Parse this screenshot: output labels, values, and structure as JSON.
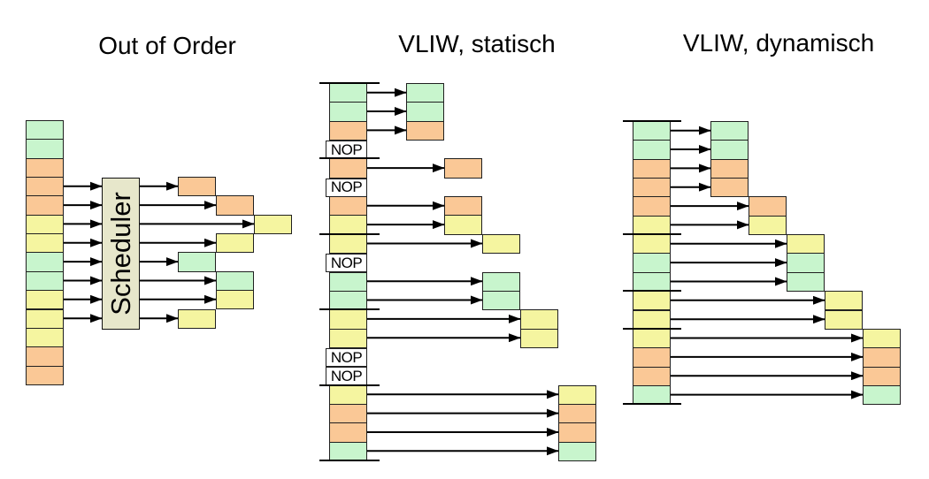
{
  "titles": [
    {
      "text": "Out of Order"
    },
    {
      "text": "VLIW, statisch"
    },
    {
      "text": "VLIW, dynamisch"
    }
  ],
  "scheduler_label": "Scheduler",
  "nop_label": "NOP",
  "palette": {
    "green": "#C8F5CD",
    "orange": "#FAC896",
    "yellow": "#F5F5A0",
    "nop_fill": "#FFFFFF",
    "scheduler_fill": "#E7E7CB",
    "cell_border": "#202020",
    "arrow": "#000000",
    "title_color": "#000000"
  },
  "out_of_order": {
    "rows": [
      "green",
      "green",
      "orange",
      "orange",
      "orange",
      "yellow",
      "yellow",
      "green",
      "green",
      "yellow",
      "yellow",
      "yellow",
      "orange",
      "orange"
    ],
    "issued": [
      {
        "row": 3,
        "cycle": 0
      },
      {
        "row": 4,
        "cycle": 1
      },
      {
        "row": 5,
        "cycle": 2
      },
      {
        "row": 6,
        "cycle": 1
      },
      {
        "row": 7,
        "cycle": 0
      },
      {
        "row": 8,
        "cycle": 1
      },
      {
        "row": 9,
        "cycle": 1
      },
      {
        "row": 10,
        "cycle": 0
      }
    ]
  },
  "vliw_static": {
    "rows": [
      "green",
      "green",
      "orange",
      "nop",
      "orange",
      "nop",
      "orange",
      "yellow",
      "yellow",
      "nop",
      "green",
      "green",
      "yellow",
      "yellow",
      "nop",
      "nop",
      "yellow",
      "orange",
      "orange",
      "green"
    ],
    "bundle_breaks": [
      0,
      4,
      8,
      12,
      16,
      20
    ],
    "cycles": [
      0,
      0,
      0,
      null,
      1,
      null,
      1,
      1,
      2,
      null,
      2,
      2,
      3,
      3,
      null,
      null,
      4,
      4,
      4,
      4
    ]
  },
  "vliw_dynamic": {
    "rows": [
      "green",
      "green",
      "orange",
      "orange",
      "orange",
      "yellow",
      "yellow",
      "green",
      "green",
      "yellow",
      "yellow",
      "yellow",
      "orange",
      "orange",
      "green"
    ],
    "bundle_breaks": [
      0,
      6,
      9,
      11,
      15
    ],
    "cycles": [
      0,
      0,
      0,
      0,
      1,
      1,
      2,
      2,
      2,
      3,
      3,
      4,
      4,
      4,
      4
    ]
  }
}
